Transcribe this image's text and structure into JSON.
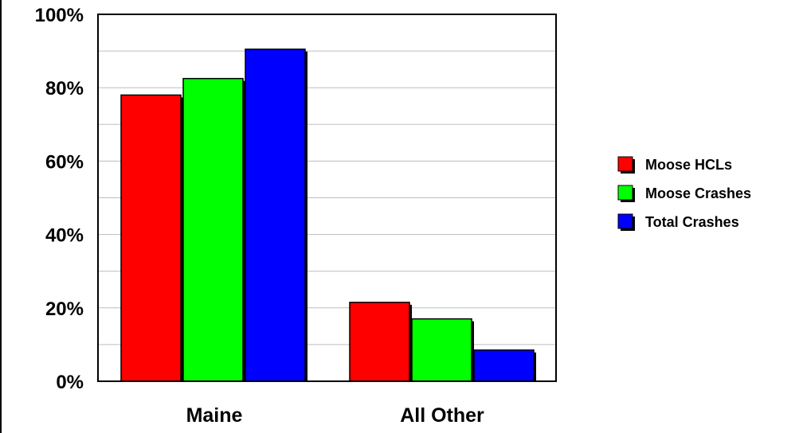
{
  "chart_data": {
    "type": "bar",
    "categories": [
      "Maine",
      "All Other"
    ],
    "series": [
      {
        "name": "Moose HCLs",
        "color": "#ff0000",
        "values": [
          78,
          21.5
        ]
      },
      {
        "name": "Moose Crashes",
        "color": "#00ff00",
        "values": [
          82.5,
          17
        ]
      },
      {
        "name": "Total Crashes",
        "color": "#0000ff",
        "values": [
          90.5,
          8.5
        ]
      }
    ],
    "ylim": [
      0,
      100
    ],
    "yticks": [
      "0%",
      "20%",
      "40%",
      "60%",
      "80%",
      "100%"
    ],
    "ytick_values": [
      0,
      20,
      40,
      60,
      80,
      100
    ],
    "minor_gridlines": [
      10,
      30,
      50,
      70,
      90
    ],
    "grid": true,
    "legend": "right",
    "title": "",
    "xlabel": "",
    "ylabel": ""
  }
}
